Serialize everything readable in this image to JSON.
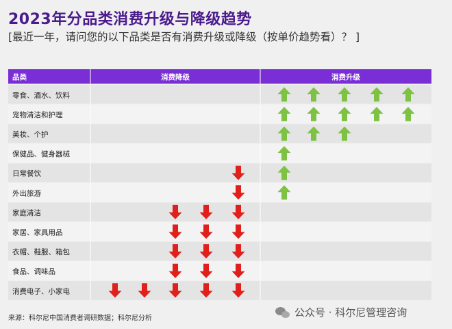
{
  "header": {
    "title": "2023年分品类消费升级与降级趋势",
    "subtitle": "[最近一年，请问您的以下品类是否有消费升级或降级（按单价趋势看）？ ]"
  },
  "chart_data": {
    "type": "table",
    "columns": [
      "品类",
      "消费降级",
      "消费升级"
    ],
    "rows": [
      {
        "category": "零食、酒水、饮料",
        "down": 0,
        "up": 5
      },
      {
        "category": "宠物清洁和护理",
        "down": 0,
        "up": 5
      },
      {
        "category": "美妆、个护",
        "down": 0,
        "up": 3
      },
      {
        "category": "保健品、健身器械",
        "down": 0,
        "up": 1
      },
      {
        "category": "日常餐饮",
        "down": 1,
        "up": 1
      },
      {
        "category": "外出旅游",
        "down": 1,
        "up": 1
      },
      {
        "category": "家庭清洁",
        "down": 3,
        "up": 0
      },
      {
        "category": "家居、家具用品",
        "down": 3,
        "up": 0
      },
      {
        "category": "衣帽、鞋服、箱包",
        "down": 3,
        "up": 0
      },
      {
        "category": "食品、调味品",
        "down": 3,
        "up": 0
      },
      {
        "category": "消费电子、小家电",
        "down": 5,
        "up": 0
      }
    ],
    "max_arrows": 5,
    "colors": {
      "header_bg": "#7a2fd6",
      "up_arrow": "#7dc242",
      "down_arrow": "#e0201b",
      "row_light": "#f3f3f3",
      "row_dark": "#e4e4e4"
    }
  },
  "footer": {
    "source": "来源：科尔尼中国消费者调研数据；科尔尼分析",
    "watermark": "公众号 · 科尔尼管理咨询"
  }
}
